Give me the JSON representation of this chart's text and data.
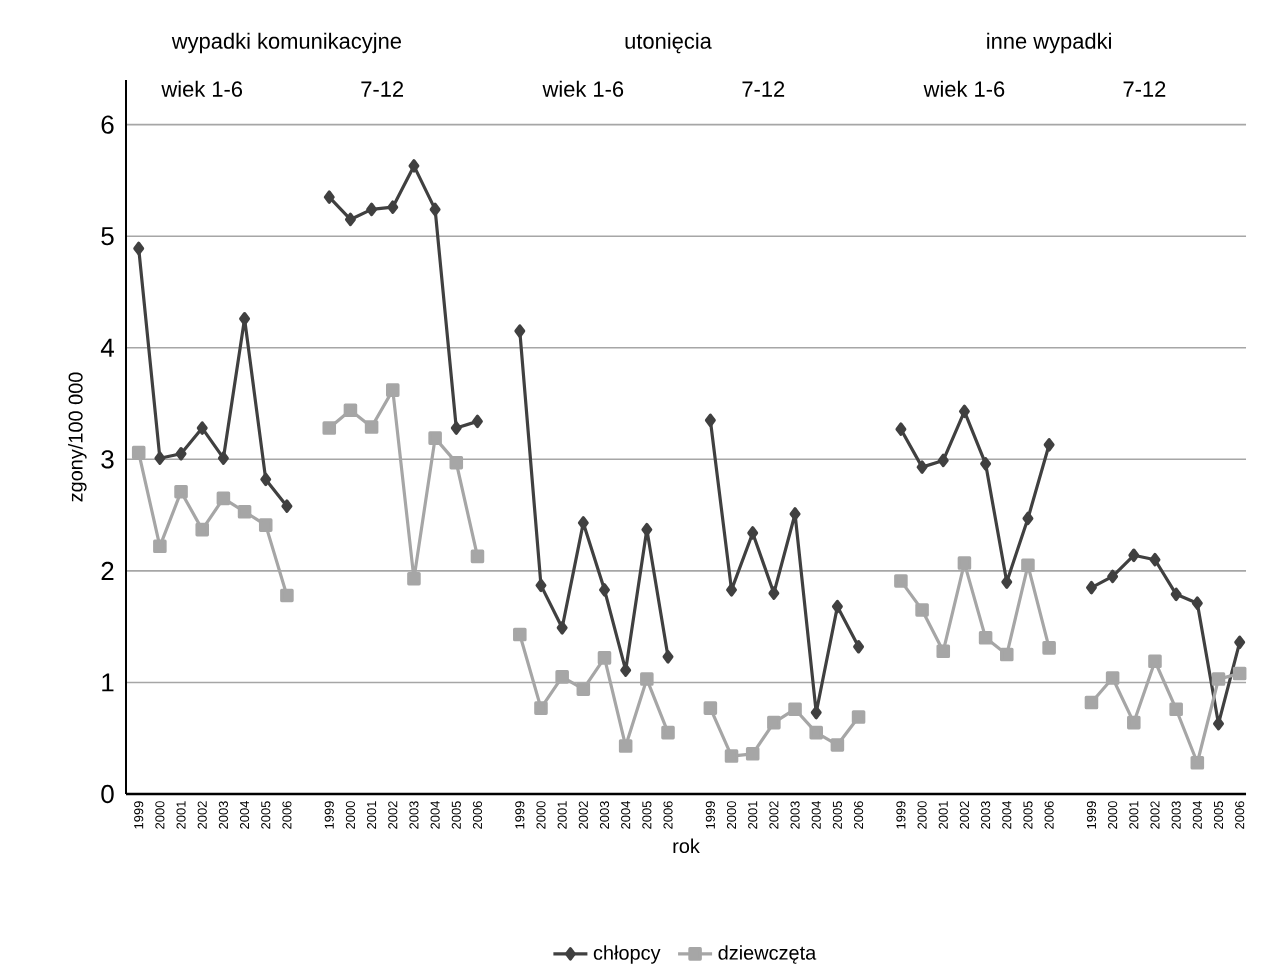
{
  "chart_data": {
    "type": "line",
    "xlabel": "rok",
    "ylabel": "zgony/100 000",
    "categories": [
      "1999",
      "2000",
      "2001",
      "2002",
      "2003",
      "2004",
      "2005",
      "2006",
      null,
      "1999",
      "2000",
      "2001",
      "2002",
      "2003",
      "2004",
      "2005",
      "2006",
      null,
      "1999",
      "2000",
      "2001",
      "2002",
      "2003",
      "2004",
      "2005",
      "2006",
      null,
      "1999",
      "2000",
      "2001",
      "2002",
      "2003",
      "2004",
      "2005",
      "2006",
      null,
      "1999",
      "2000",
      "2001",
      "2002",
      "2003",
      "2004",
      "2005",
      "2006",
      null,
      "1999",
      "2000",
      "2001",
      "2002",
      "2003",
      "2004",
      "2005",
      "2006"
    ],
    "series": [
      {
        "name": "chłopcy",
        "color": "#404040",
        "marker": "diamond",
        "values": [
          4.89,
          3.01,
          3.05,
          3.28,
          3.01,
          4.26,
          2.82,
          2.58,
          null,
          5.35,
          5.15,
          5.24,
          5.26,
          5.63,
          5.24,
          3.28,
          3.34,
          null,
          4.15,
          1.87,
          1.49,
          2.43,
          1.83,
          1.11,
          2.37,
          1.23,
          null,
          3.35,
          1.83,
          2.34,
          1.8,
          2.51,
          0.73,
          1.68,
          1.32,
          null,
          3.27,
          2.93,
          2.99,
          3.43,
          2.96,
          1.9,
          2.47,
          3.13,
          null,
          1.85,
          1.95,
          2.14,
          2.1,
          1.79,
          1.71,
          0.63,
          1.36
        ]
      },
      {
        "name": "dziewczęta",
        "color": "#a6a6a6",
        "marker": "square",
        "values": [
          3.06,
          2.22,
          2.71,
          2.37,
          2.65,
          2.53,
          2.41,
          1.78,
          null,
          3.28,
          3.44,
          3.29,
          3.62,
          1.93,
          3.19,
          2.97,
          2.13,
          null,
          1.43,
          0.77,
          1.05,
          0.94,
          1.22,
          0.43,
          1.03,
          0.55,
          null,
          0.77,
          0.34,
          0.36,
          0.64,
          0.76,
          0.55,
          0.44,
          0.69,
          null,
          1.91,
          1.65,
          1.28,
          2.07,
          1.4,
          1.25,
          2.05,
          1.31,
          null,
          0.82,
          1.04,
          0.64,
          1.19,
          0.76,
          0.28,
          1.03,
          1.08
        ]
      }
    ],
    "annotations": [
      "wypadki komunikacyjne",
      "wiek 1-6",
      "7-12",
      "utonięcia",
      "wiek 1-6",
      "7-12",
      "inne wypadki",
      "wiek 1-6",
      "7-12"
    ],
    "ylim": [
      0,
      6.4
    ],
    "yticks": [
      0,
      1,
      2,
      3,
      4,
      5,
      6
    ],
    "grid": "y",
    "legend": "bottom",
    "line_style": "solid"
  }
}
